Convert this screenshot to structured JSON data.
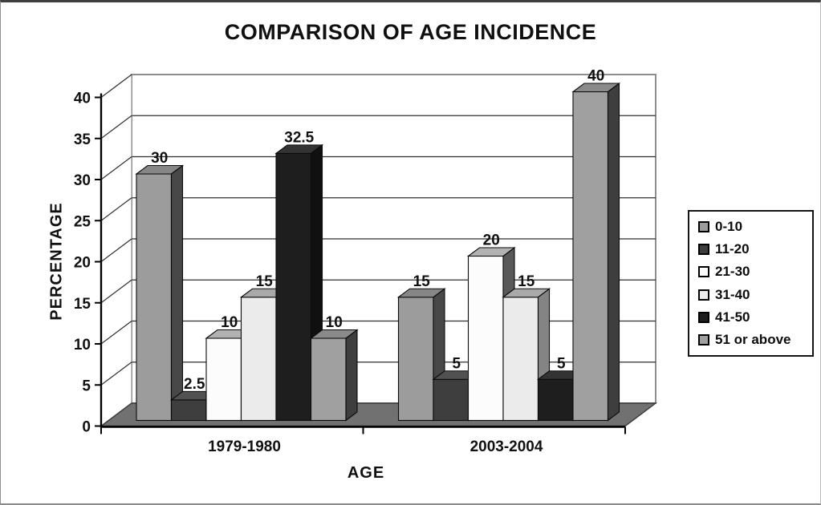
{
  "chart_data": {
    "type": "bar",
    "projection": "3d-clustered",
    "title": "COMPARISON OF AGE INCIDENCE",
    "xlabel": "AGE",
    "ylabel": "PERCENTAGE",
    "categories": [
      "1979-1980",
      "2003-2004"
    ],
    "series": [
      {
        "name": "0-10",
        "values": [
          30,
          15
        ]
      },
      {
        "name": "11-20",
        "values": [
          2.5,
          5
        ]
      },
      {
        "name": "21-30",
        "values": [
          10,
          20
        ]
      },
      {
        "name": "31-40",
        "values": [
          15,
          15
        ]
      },
      {
        "name": "41-50",
        "values": [
          32.5,
          5
        ]
      },
      {
        "name": "51 or above",
        "values": [
          10,
          40
        ]
      }
    ],
    "ylim": [
      0,
      40
    ],
    "yticks": [
      0,
      5,
      10,
      15,
      20,
      25,
      30,
      35,
      40
    ],
    "grid": true,
    "legend_position": "right",
    "value_labels_shown": true
  },
  "colors": {
    "series_front": [
      "#9c9c9c",
      "#3e3e3e",
      "#fcfcfc",
      "#ebebeb",
      "#1e1e1e",
      "#a0a0a0"
    ],
    "series_side": [
      "#484848",
      "#232323",
      "#595959",
      "#848484",
      "#101010",
      "#3e3e3e"
    ],
    "series_top": [
      "#868686",
      "#515151",
      "#b2b2b2",
      "#a9a9a9",
      "#333333",
      "#8a8a8a"
    ],
    "floor": "#717171",
    "wall": "#ffffff",
    "wall_border": "#8f8f8f",
    "gridline": "#2f2f2f",
    "axis": "#000000",
    "text": "#111111",
    "background": "#ffffff"
  }
}
